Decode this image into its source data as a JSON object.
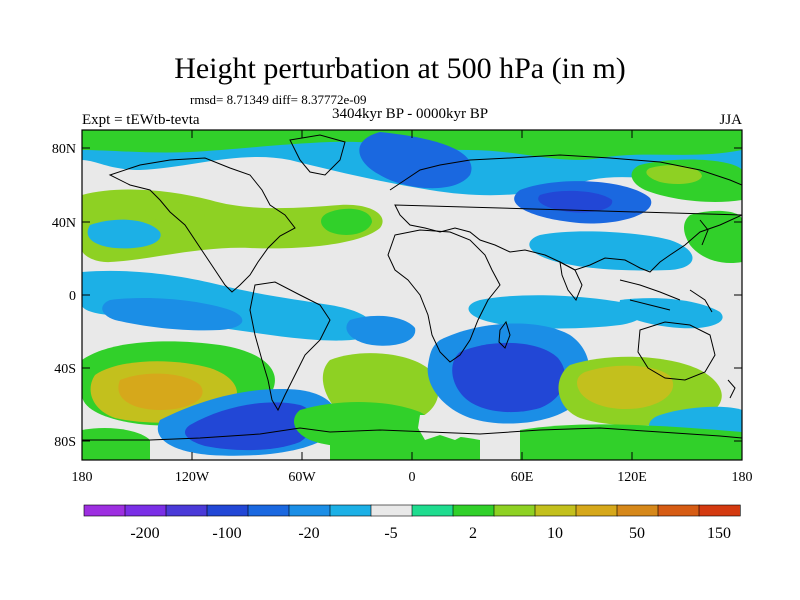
{
  "title": "Height perturbation at 500 hPa (in m)",
  "stats": "rmsd= 8.71349 diff= 8.37772e-09",
  "expt": "Expt = tEWtb-tevta",
  "period": "3404kyr BP - 0000kyr BP",
  "season": "JJA",
  "axes": {
    "y_ticks": [
      "80N",
      "40N",
      "0",
      "40S",
      "80S"
    ],
    "x_ticks": [
      "180",
      "120W",
      "60W",
      "0",
      "60E",
      "120E",
      "180"
    ]
  },
  "colorbar": {
    "colors": [
      "#9d2fe0",
      "#7a2fe6",
      "#4a3ad8",
      "#2247d6",
      "#1a68e0",
      "#1b8ee6",
      "#1cb0e6",
      "#e9e9e9",
      "#1fdc8f",
      "#31d02a",
      "#8ed123",
      "#c3c01d",
      "#d6a81b",
      "#d6881a",
      "#d65c14",
      "#d43a10"
    ],
    "labels": [
      "-200",
      "-100",
      "-20",
      "-5",
      "2",
      "10",
      "50",
      "150"
    ]
  },
  "map": {
    "fields": [
      {
        "name": "blob-north-atlantic-low",
        "color": "#1a68e0"
      },
      {
        "name": "blob-eurasia-low",
        "color": "#1a68e0"
      },
      {
        "name": "blob-pacific-high",
        "color": "#8ed123"
      },
      {
        "name": "blob-south-pacific-high",
        "color": "#c3c01d"
      },
      {
        "name": "blob-southern-ocean-low",
        "color": "#2247d6"
      },
      {
        "name": "blob-south-atlantic-high",
        "color": "#8ed123"
      },
      {
        "name": "blob-indian-ocean-low",
        "color": "#2247d6"
      },
      {
        "name": "blob-australia-high",
        "color": "#c3c01d"
      }
    ]
  }
}
